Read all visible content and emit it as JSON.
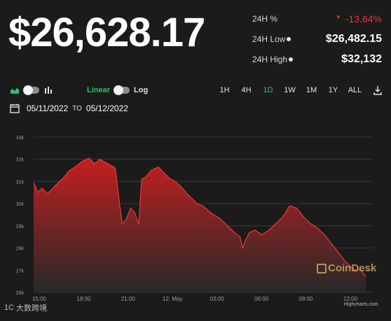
{
  "price": "$26,628.17",
  "stats": [
    {
      "label": "24H %",
      "value": "-13.64%",
      "info": false,
      "negative": true
    },
    {
      "label": "24H Low",
      "value": "$26,482.15",
      "info": true,
      "negative": false
    },
    {
      "label": "24H High",
      "value": "$32,132",
      "info": true,
      "negative": false
    }
  ],
  "toolbar": {
    "linear_label": "Linear",
    "log_label": "Log",
    "ranges": [
      "1H",
      "4H",
      "1D",
      "1W",
      "1M",
      "1Y",
      "ALL"
    ],
    "active_range": "1D"
  },
  "date_range": {
    "from": "05/11/2022",
    "to_label": "TO",
    "to": "05/12/2022"
  },
  "watermark": {
    "brand": "CoinDesk",
    "highcharts": "Highcharts.com",
    "corner": "大数跨境",
    "corner_prefix": "1C"
  },
  "colors": {
    "negative": "#e53935",
    "accent": "#2ec26b",
    "area_top": "#c71f1f"
  },
  "chart_data": {
    "type": "area",
    "title": "",
    "xlabel": "",
    "ylabel": "",
    "y_ticks": [
      "33k",
      "32k",
      "31k",
      "30k",
      "29k",
      "28k",
      "27k",
      "26k"
    ],
    "ylim": [
      26000,
      33000
    ],
    "x_ticks": [
      "15:00",
      "18:00",
      "21:00",
      "12. May",
      "03:00",
      "06:00",
      "09:00",
      "12:00"
    ],
    "grid": true,
    "series": [
      {
        "values": [
          [
            0,
            30950
          ],
          [
            0.3,
            30500
          ],
          [
            0.6,
            30700
          ],
          [
            1.0,
            30450
          ],
          [
            1.4,
            30700
          ],
          [
            1.8,
            30950
          ],
          [
            2.2,
            31200
          ],
          [
            2.6,
            31500
          ],
          [
            3.0,
            31650
          ],
          [
            3.5,
            31900
          ],
          [
            4.0,
            32050
          ],
          [
            4.4,
            31800
          ],
          [
            4.8,
            32000
          ],
          [
            5.2,
            31850
          ],
          [
            5.5,
            31750
          ],
          [
            5.9,
            31600
          ],
          [
            6.2,
            30000
          ],
          [
            6.4,
            29100
          ],
          [
            6.7,
            29300
          ],
          [
            7.0,
            29800
          ],
          [
            7.3,
            29600
          ],
          [
            7.6,
            29050
          ],
          [
            7.8,
            31100
          ],
          [
            8.1,
            31200
          ],
          [
            8.5,
            31500
          ],
          [
            9.0,
            31650
          ],
          [
            9.4,
            31400
          ],
          [
            9.8,
            31150
          ],
          [
            10.2,
            31000
          ],
          [
            10.6,
            30800
          ],
          [
            11.0,
            30500
          ],
          [
            11.4,
            30250
          ],
          [
            11.8,
            30000
          ],
          [
            12.2,
            29900
          ],
          [
            12.6,
            29700
          ],
          [
            13.0,
            29500
          ],
          [
            13.5,
            29300
          ],
          [
            14.0,
            29000
          ],
          [
            14.5,
            28700
          ],
          [
            14.9,
            28500
          ],
          [
            15.1,
            28000
          ],
          [
            15.3,
            28350
          ],
          [
            15.6,
            28700
          ],
          [
            16.0,
            28800
          ],
          [
            16.5,
            28600
          ],
          [
            17.0,
            28800
          ],
          [
            17.5,
            29100
          ],
          [
            18.0,
            29400
          ],
          [
            18.5,
            29900
          ],
          [
            19.0,
            29800
          ],
          [
            19.5,
            29400
          ],
          [
            20.0,
            29100
          ],
          [
            20.5,
            28900
          ],
          [
            21.0,
            28600
          ],
          [
            21.5,
            28200
          ],
          [
            22.0,
            27800
          ],
          [
            22.5,
            27400
          ],
          [
            23.0,
            27100
          ],
          [
            23.3,
            26950
          ],
          [
            23.6,
            27050
          ],
          [
            24.0,
            26700
          ]
        ]
      }
    ]
  }
}
